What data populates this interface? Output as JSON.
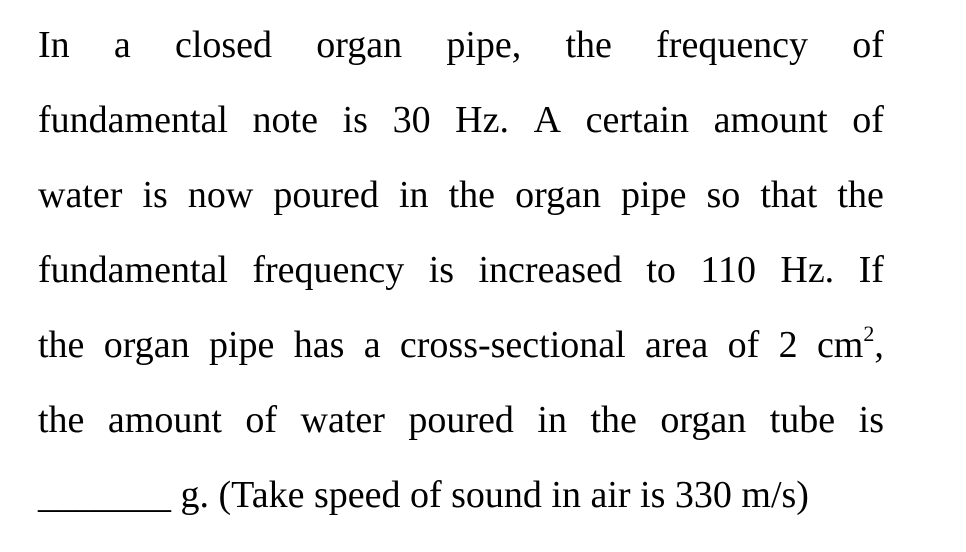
{
  "question": {
    "line1_words": [
      "In",
      "a",
      "closed",
      "organ",
      "pipe,",
      "the",
      "frequency",
      "of"
    ],
    "line2_words": [
      "fundamental",
      "note",
      "is",
      "30",
      "Hz.",
      "A",
      "certain",
      "amount",
      "of"
    ],
    "line3_words": [
      "water",
      "is",
      "now",
      "poured",
      "in",
      "the",
      "organ",
      "pipe",
      "so",
      "that",
      "the"
    ],
    "line4_words": [
      "fundamental",
      "frequency",
      "is",
      "increased",
      "to",
      "110",
      "Hz.",
      "If"
    ],
    "line5_words": [
      "the",
      "organ",
      "pipe",
      "has",
      "a",
      "cross-sectional",
      "area",
      "of",
      "2"
    ],
    "line5_unit": "cm",
    "line5_exponent": "2",
    "line5_tail": ",",
    "line6_words": [
      "the",
      "amount",
      "of",
      "water",
      "poured",
      "in",
      "the",
      "organ",
      "tube",
      "is"
    ],
    "line7_blank": "_______",
    "line7_text": "g. (Take speed of sound in air is 330 m/s)"
  }
}
